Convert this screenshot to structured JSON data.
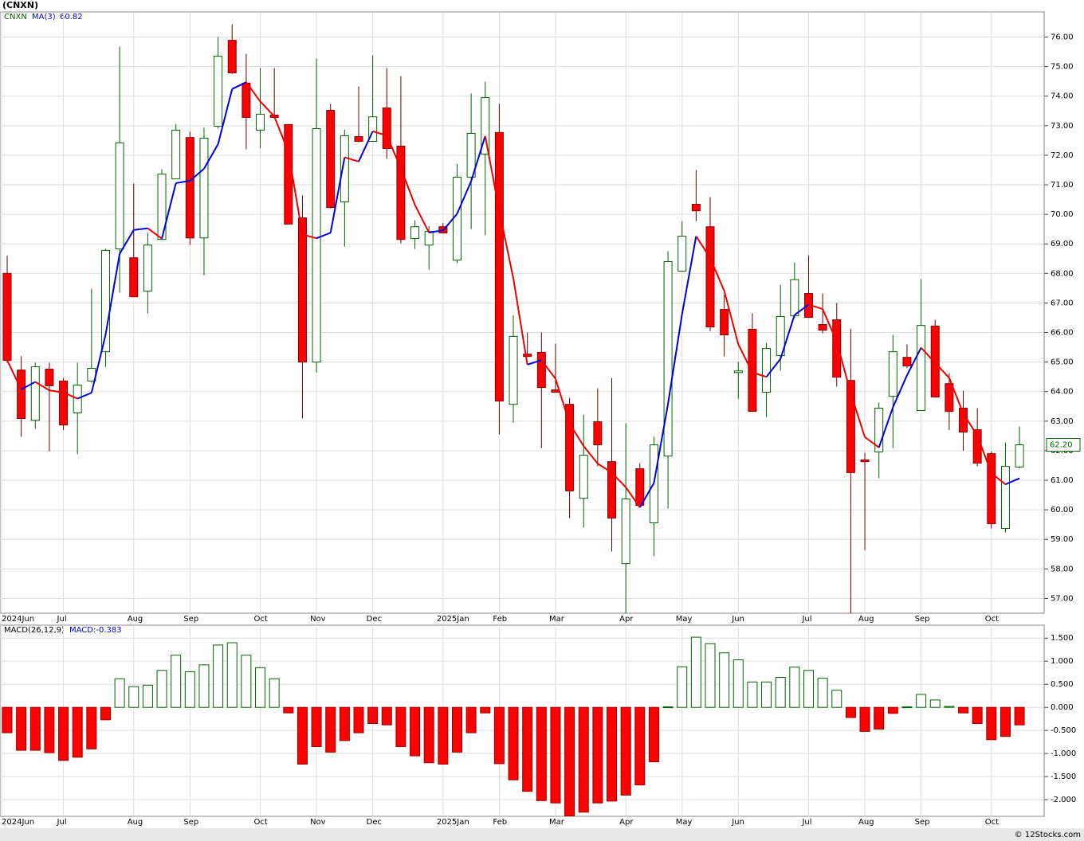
{
  "title": "(CNXN)",
  "footer": "© 12Stocks.com",
  "chart_data": [
    {
      "type": "candlestick",
      "symbol": "CNXN",
      "ma_name": "MA(3)",
      "ma_value": 60.82,
      "last_price": {
        "value": 62.2,
        "label": "62.20"
      },
      "up_color": "#006400",
      "down_color": "#ff0000",
      "ma_up_color": "#0000dd",
      "ma_down_color": "#ee0000",
      "grid": true,
      "categories": [
        "2024Jun",
        null,
        null,
        null,
        "Jul",
        null,
        null,
        null,
        null,
        "Aug",
        null,
        null,
        null,
        "Sep",
        null,
        null,
        null,
        null,
        "Oct",
        null,
        null,
        null,
        "Nov",
        null,
        null,
        null,
        "Dec",
        null,
        null,
        null,
        null,
        "2025Jan",
        null,
        null,
        null,
        "Feb",
        null,
        null,
        null,
        "Mar",
        null,
        null,
        null,
        null,
        "Apr",
        null,
        null,
        null,
        "May",
        null,
        null,
        null,
        "Jun",
        null,
        null,
        null,
        null,
        "Jul",
        null,
        null,
        null,
        "Aug",
        null,
        null,
        null,
        "Sep",
        null,
        null,
        null,
        null,
        "Oct",
        null,
        null
      ],
      "open": [
        68.0,
        64.73,
        63.03,
        64.76,
        64.36,
        63.28,
        64.36,
        65.35,
        68.83,
        68.53,
        67.4,
        69.15,
        71.2,
        72.6,
        69.2,
        72.98,
        75.89,
        74.44,
        72.85,
        73.36,
        73.04,
        69.88,
        65.0,
        73.52,
        70.42,
        72.63,
        72.47,
        73.6,
        72.31,
        69.18,
        68.96,
        69.58,
        68.45,
        71.26,
        72.04,
        72.77,
        63.57,
        65.27,
        65.33,
        64.06,
        63.57,
        60.39,
        62.98,
        61.63,
        58.18,
        61.39,
        59.56,
        61.82,
        68.08,
        70.34,
        69.58,
        66.78,
        64.65,
        66.11,
        63.98,
        65.22,
        66.57,
        67.32,
        66.27,
        66.43,
        64.38,
        61.69,
        61.96,
        63.84,
        65.16,
        63.36,
        66.22,
        64.27,
        63.44,
        62.71,
        61.9,
        59.37,
        61.45
      ],
      "high": [
        68.6,
        65.2,
        64.98,
        64.98,
        64.46,
        64.98,
        67.48,
        68.83,
        75.68,
        71.04,
        69.37,
        71.53,
        73.06,
        72.8,
        72.93,
        76.0,
        76.43,
        75.43,
        74.95,
        74.95,
        73.06,
        70.64,
        75.27,
        73.74,
        72.87,
        74.33,
        75.38,
        74.95,
        74.68,
        69.8,
        69.6,
        69.7,
        71.71,
        74.09,
        74.49,
        73.74,
        66.59,
        66.0,
        66.0,
        65.62,
        63.79,
        63.22,
        64.11,
        64.46,
        62.93,
        61.58,
        62.47,
        68.75,
        69.77,
        71.5,
        70.58,
        67.27,
        65.0,
        66.65,
        65.65,
        67.62,
        68.37,
        68.61,
        67.32,
        67.0,
        66.13,
        61.93,
        63.63,
        65.92,
        65.6,
        67.81,
        66.43,
        64.62,
        64.03,
        63.44,
        61.98,
        62.28,
        62.82
      ],
      "low": [
        64.98,
        62.47,
        62.74,
        61.98,
        62.7,
        61.88,
        64.3,
        64.84,
        67.35,
        67.21,
        66.65,
        69.15,
        71.2,
        68.97,
        67.94,
        72.9,
        74.75,
        72.2,
        72.23,
        73.25,
        69.67,
        63.09,
        64.65,
        70.2,
        68.91,
        72.44,
        72.47,
        71.88,
        69.02,
        68.83,
        68.13,
        69.35,
        68.35,
        69.5,
        69.29,
        62.55,
        62.95,
        65.19,
        62.09,
        63.98,
        59.72,
        59.4,
        61.47,
        58.59,
        56.49,
        60.1,
        58.43,
        60.04,
        68.08,
        69.77,
        66.05,
        65.19,
        63.76,
        63.33,
        63.14,
        64.71,
        66.5,
        66.51,
        65.97,
        64.17,
        56.49,
        58.64,
        61.07,
        62.09,
        64.8,
        63.36,
        63.8,
        62.7,
        62.0,
        61.47,
        59.37,
        59.23,
        61.4
      ],
      "close": [
        65.06,
        63.09,
        64.84,
        64.2,
        62.87,
        64.22,
        64.79,
        68.78,
        72.42,
        67.21,
        68.96,
        71.36,
        72.85,
        69.2,
        72.58,
        75.35,
        74.79,
        73.28,
        73.39,
        73.28,
        69.67,
        65.0,
        72.9,
        70.23,
        72.66,
        72.47,
        73.3,
        72.23,
        69.15,
        69.58,
        69.42,
        69.37,
        71.26,
        72.74,
        73.95,
        63.68,
        65.87,
        65.19,
        64.14,
        63.98,
        60.64,
        61.85,
        62.2,
        59.72,
        60.37,
        60.15,
        62.2,
        68.4,
        69.26,
        70.12,
        66.19,
        65.92,
        64.7,
        63.33,
        65.46,
        66.54,
        67.79,
        66.51,
        66.08,
        64.49,
        61.26,
        61.63,
        63.44,
        65.35,
        64.87,
        66.24,
        63.82,
        63.33,
        62.63,
        61.58,
        59.53,
        61.47,
        62.2
      ],
      "ylim": [
        56.5,
        76.85
      ],
      "yticks": [
        {
          "value": 57,
          "label": "57.00"
        },
        {
          "value": 58,
          "label": "58.00"
        },
        {
          "value": 59,
          "label": "59.00"
        },
        {
          "value": 60,
          "label": "60.00"
        },
        {
          "value": 61,
          "label": "61.00"
        },
        {
          "value": 62,
          "label": "62.00"
        },
        {
          "value": 63,
          "label": "63.00"
        },
        {
          "value": 64,
          "label": "64.00"
        },
        {
          "value": 65,
          "label": "65.00"
        },
        {
          "value": 66,
          "label": "66.00"
        },
        {
          "value": 67,
          "label": "67.00"
        },
        {
          "value": 68,
          "label": "68.00"
        },
        {
          "value": 69,
          "label": "69.00"
        },
        {
          "value": 70,
          "label": "70.00"
        },
        {
          "value": 71,
          "label": "71.00"
        },
        {
          "value": 72,
          "label": "72.00"
        },
        {
          "value": 73,
          "label": "73.00"
        },
        {
          "value": 74,
          "label": "74.00"
        },
        {
          "value": 75,
          "label": "75.00"
        },
        {
          "value": 76,
          "label": "76.00"
        }
      ]
    },
    {
      "type": "bar",
      "name": "MACD(26,12,9)",
      "indicator_text": "MACD:-0.383",
      "up_color": "#006400",
      "down_color": "#ff0000",
      "grid": true,
      "categories": [
        "2024Jun",
        null,
        null,
        null,
        "Jul",
        null,
        null,
        null,
        null,
        "Aug",
        null,
        null,
        null,
        "Sep",
        null,
        null,
        null,
        null,
        "Oct",
        null,
        null,
        null,
        "Nov",
        null,
        null,
        null,
        "Dec",
        null,
        null,
        null,
        null,
        "2025Jan",
        null,
        null,
        null,
        "Feb",
        null,
        null,
        null,
        "Mar",
        null,
        null,
        null,
        null,
        "Apr",
        null,
        null,
        null,
        "May",
        null,
        null,
        null,
        "Jun",
        null,
        null,
        null,
        null,
        "Jul",
        null,
        null,
        null,
        "Aug",
        null,
        null,
        null,
        "Sep",
        null,
        null,
        null,
        null,
        "Oct",
        null,
        null
      ],
      "values": [
        -0.55,
        -0.93,
        -0.93,
        -0.98,
        -1.15,
        -1.08,
        -0.9,
        -0.27,
        0.62,
        0.45,
        0.48,
        0.8,
        1.13,
        0.77,
        0.92,
        1.35,
        1.4,
        1.13,
        0.86,
        0.62,
        -0.12,
        -1.23,
        -0.85,
        -0.97,
        -0.72,
        -0.55,
        -0.35,
        -0.38,
        -0.85,
        -1.05,
        -1.2,
        -1.23,
        -0.97,
        -0.55,
        -0.12,
        -1.22,
        -1.57,
        -1.82,
        -2.02,
        -2.07,
        -2.35,
        -2.27,
        -2.07,
        -2.03,
        -1.9,
        -1.68,
        -1.18,
        0.01,
        0.88,
        1.52,
        1.38,
        1.18,
        1.03,
        0.55,
        0.55,
        0.65,
        0.87,
        0.8,
        0.63,
        0.37,
        -0.22,
        -0.52,
        -0.47,
        -0.13,
        0.01,
        0.28,
        0.16,
        0.02,
        -0.12,
        -0.35,
        -0.7,
        -0.63,
        -0.38
      ],
      "ylim": [
        -2.36,
        1.78
      ],
      "yticks": [
        {
          "value": -2,
          "label": "-2.000"
        },
        {
          "value": -1.5,
          "label": "-1.500"
        },
        {
          "value": -1,
          "label": "-1.000"
        },
        {
          "value": -0.5,
          "label": "-0.500"
        },
        {
          "value": 0,
          "label": "0.000"
        },
        {
          "value": 0.5,
          "label": "0.500"
        },
        {
          "value": 1,
          "label": "1.000"
        },
        {
          "value": 1.5,
          "label": "1.500"
        }
      ]
    }
  ]
}
